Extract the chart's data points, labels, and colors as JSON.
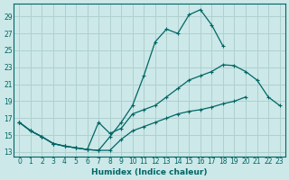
{
  "xlabel": "Humidex (Indice chaleur)",
  "ylabel": "",
  "bg_color": "#cce8e8",
  "grid_color": "#b0d0d0",
  "line_color": "#006666",
  "xlim": [
    -0.5,
    23.5
  ],
  "ylim": [
    12.5,
    30.5
  ],
  "xticks": [
    0,
    1,
    2,
    3,
    4,
    5,
    6,
    7,
    8,
    9,
    10,
    11,
    12,
    13,
    14,
    15,
    16,
    17,
    18,
    19,
    20,
    21,
    22,
    23
  ],
  "yticks": [
    13,
    15,
    17,
    19,
    21,
    23,
    25,
    27,
    29
  ],
  "line1_x": [
    0,
    1,
    2,
    3,
    4,
    5,
    6,
    7,
    8,
    9,
    10,
    11,
    12,
    13,
    14,
    15,
    16,
    17,
    18,
    19,
    20,
    21
  ],
  "line1_y": [
    16.5,
    15.5,
    14.8,
    14.0,
    13.7,
    13.5,
    13.3,
    13.2,
    14.8,
    16.5,
    18.5,
    22.0,
    26.0,
    27.5,
    27.0,
    29.2,
    29.8,
    28.0,
    25.5,
    null,
    null,
    null
  ],
  "line2_x": [
    0,
    1,
    2,
    3,
    4,
    5,
    6,
    7,
    8,
    9,
    10,
    11,
    12,
    13,
    14,
    15,
    16,
    17,
    18,
    19,
    20,
    21,
    22,
    23
  ],
  "line2_y": [
    16.5,
    15.5,
    14.8,
    14.0,
    13.7,
    13.5,
    13.3,
    16.5,
    15.2,
    15.8,
    17.5,
    18.0,
    18.5,
    19.5,
    20.5,
    21.5,
    22.0,
    22.5,
    23.3,
    23.2,
    22.5,
    21.5,
    19.5,
    18.5
  ],
  "line3_x": [
    0,
    1,
    2,
    3,
    4,
    5,
    6,
    7,
    8,
    9,
    10,
    11,
    12,
    13,
    14,
    15,
    16,
    17,
    18,
    19,
    20,
    21,
    22,
    23
  ],
  "line3_y": [
    16.5,
    15.5,
    14.8,
    14.0,
    13.7,
    13.5,
    13.3,
    13.2,
    13.2,
    14.5,
    15.5,
    16.0,
    16.5,
    17.0,
    17.5,
    17.8,
    18.0,
    18.3,
    18.7,
    19.0,
    19.5,
    null,
    null,
    null
  ]
}
